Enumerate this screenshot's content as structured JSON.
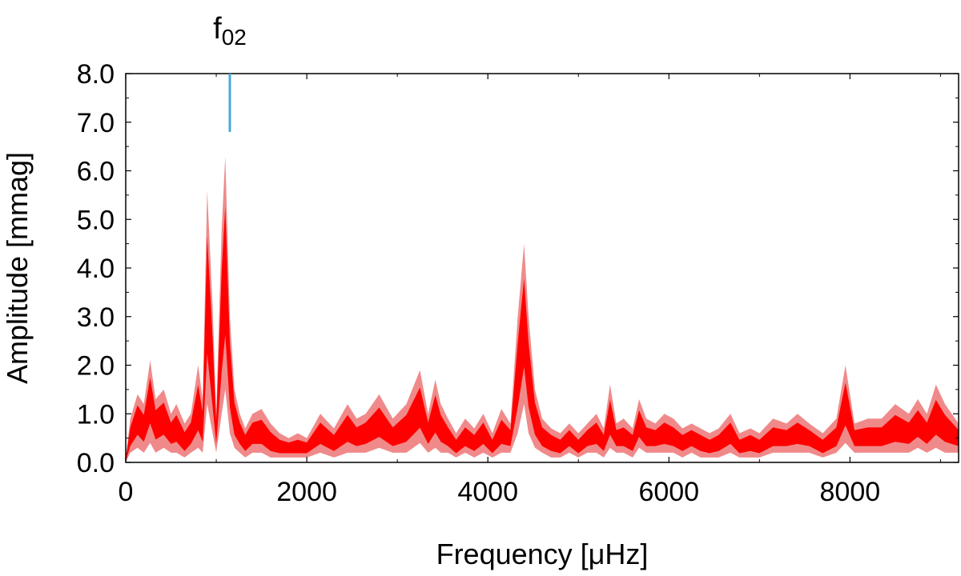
{
  "chart_data": {
    "type": "line",
    "xlabel": "Frequency [μHz]",
    "ylabel": "Amplitude [mmag]",
    "xlim": [
      0,
      9200
    ],
    "ylim": [
      0,
      8
    ],
    "x_ticks": [
      "0",
      "2000",
      "4000",
      "6000",
      "8000"
    ],
    "x_tick_values": [
      0,
      2000,
      4000,
      6000,
      8000
    ],
    "y_ticks": [
      "0.0",
      "1.0",
      "2.0",
      "3.0",
      "4.0",
      "5.0",
      "6.0",
      "7.0",
      "8.0"
    ],
    "y_tick_values": [
      0,
      1,
      2,
      3,
      4,
      5,
      6,
      7,
      8
    ],
    "grid": false,
    "annotation": {
      "label_main": "f",
      "label_sub": "02",
      "x": 1150,
      "y_from": 6.8,
      "y_to": 8.0,
      "color": "#4aa8d8"
    },
    "series": [
      {
        "color_light": "#f08a8a",
        "color_dark": "#ff0000",
        "x": [
          0,
          50,
          130,
          200,
          270,
          330,
          420,
          500,
          560,
          650,
          720,
          800,
          850,
          900,
          960,
          1000,
          1060,
          1100,
          1150,
          1200,
          1260,
          1320,
          1400,
          1500,
          1600,
          1700,
          1800,
          1900,
          2000,
          2150,
          2300,
          2450,
          2550,
          2650,
          2800,
          2950,
          3100,
          3250,
          3340,
          3420,
          3480,
          3560,
          3650,
          3750,
          3850,
          3950,
          4050,
          4150,
          4250,
          4330,
          4400,
          4450,
          4520,
          4600,
          4700,
          4800,
          4900,
          5000,
          5100,
          5200,
          5280,
          5350,
          5420,
          5500,
          5600,
          5670,
          5750,
          5850,
          5950,
          6050,
          6150,
          6250,
          6350,
          6450,
          6550,
          6680,
          6780,
          6900,
          7000,
          7150,
          7300,
          7420,
          7550,
          7700,
          7850,
          7950,
          8050,
          8200,
          8350,
          8500,
          8650,
          8750,
          8850,
          8950,
          9050,
          9200
        ],
        "upper": [
          0.1,
          0.9,
          1.4,
          1.2,
          2.1,
          1.3,
          1.5,
          1.0,
          1.2,
          0.8,
          1.0,
          2.0,
          1.3,
          5.6,
          3.2,
          1.0,
          4.8,
          6.3,
          3.0,
          1.5,
          1.0,
          0.7,
          1.0,
          1.1,
          0.8,
          0.6,
          0.5,
          0.6,
          0.5,
          1.0,
          0.7,
          1.2,
          0.9,
          1.0,
          1.4,
          0.9,
          1.2,
          1.9,
          1.0,
          1.7,
          1.2,
          0.9,
          0.6,
          0.9,
          0.7,
          1.0,
          0.6,
          1.1,
          0.8,
          3.0,
          4.5,
          3.0,
          1.5,
          0.9,
          0.7,
          0.6,
          0.8,
          0.6,
          0.8,
          1.0,
          0.7,
          1.6,
          0.8,
          0.9,
          0.7,
          1.3,
          0.9,
          0.8,
          1.0,
          0.9,
          0.7,
          0.8,
          0.7,
          0.6,
          0.7,
          1.0,
          0.6,
          0.7,
          0.6,
          0.9,
          0.8,
          1.0,
          0.8,
          0.6,
          0.9,
          2.0,
          0.8,
          0.9,
          0.9,
          1.2,
          1.0,
          1.3,
          1.0,
          1.6,
          1.2,
          0.8
        ],
        "lower": [
          0.0,
          0.2,
          0.3,
          0.2,
          0.4,
          0.2,
          0.3,
          0.2,
          0.2,
          0.1,
          0.2,
          0.3,
          0.2,
          1.2,
          0.6,
          0.2,
          1.0,
          1.5,
          0.6,
          0.3,
          0.2,
          0.1,
          0.2,
          0.2,
          0.1,
          0.1,
          0.1,
          0.1,
          0.1,
          0.2,
          0.1,
          0.2,
          0.2,
          0.2,
          0.3,
          0.2,
          0.2,
          0.4,
          0.2,
          0.3,
          0.2,
          0.2,
          0.1,
          0.2,
          0.1,
          0.2,
          0.1,
          0.2,
          0.2,
          0.6,
          1.2,
          0.6,
          0.3,
          0.2,
          0.1,
          0.1,
          0.2,
          0.1,
          0.2,
          0.2,
          0.1,
          0.3,
          0.2,
          0.2,
          0.1,
          0.3,
          0.2,
          0.2,
          0.2,
          0.2,
          0.1,
          0.2,
          0.1,
          0.1,
          0.1,
          0.2,
          0.1,
          0.1,
          0.1,
          0.2,
          0.2,
          0.2,
          0.2,
          0.1,
          0.2,
          0.4,
          0.2,
          0.2,
          0.2,
          0.2,
          0.2,
          0.3,
          0.2,
          0.3,
          0.2,
          0.2
        ],
        "center": [
          0.05,
          0.5,
          0.9,
          0.7,
          1.3,
          0.8,
          0.9,
          0.6,
          0.7,
          0.4,
          0.6,
          1.1,
          0.7,
          3.5,
          1.8,
          0.6,
          2.9,
          4.0,
          1.8,
          0.9,
          0.6,
          0.4,
          0.6,
          0.6,
          0.4,
          0.3,
          0.3,
          0.3,
          0.3,
          0.6,
          0.4,
          0.7,
          0.5,
          0.6,
          0.8,
          0.5,
          0.7,
          1.1,
          0.6,
          1.0,
          0.7,
          0.5,
          0.3,
          0.5,
          0.4,
          0.6,
          0.3,
          0.6,
          0.5,
          1.8,
          2.9,
          1.8,
          0.9,
          0.5,
          0.4,
          0.3,
          0.5,
          0.3,
          0.5,
          0.6,
          0.4,
          0.9,
          0.5,
          0.5,
          0.4,
          0.8,
          0.5,
          0.5,
          0.6,
          0.5,
          0.4,
          0.5,
          0.4,
          0.3,
          0.4,
          0.6,
          0.3,
          0.4,
          0.3,
          0.5,
          0.5,
          0.6,
          0.5,
          0.3,
          0.5,
          1.2,
          0.5,
          0.5,
          0.5,
          0.7,
          0.6,
          0.8,
          0.6,
          0.9,
          0.7,
          0.5
        ]
      }
    ]
  }
}
